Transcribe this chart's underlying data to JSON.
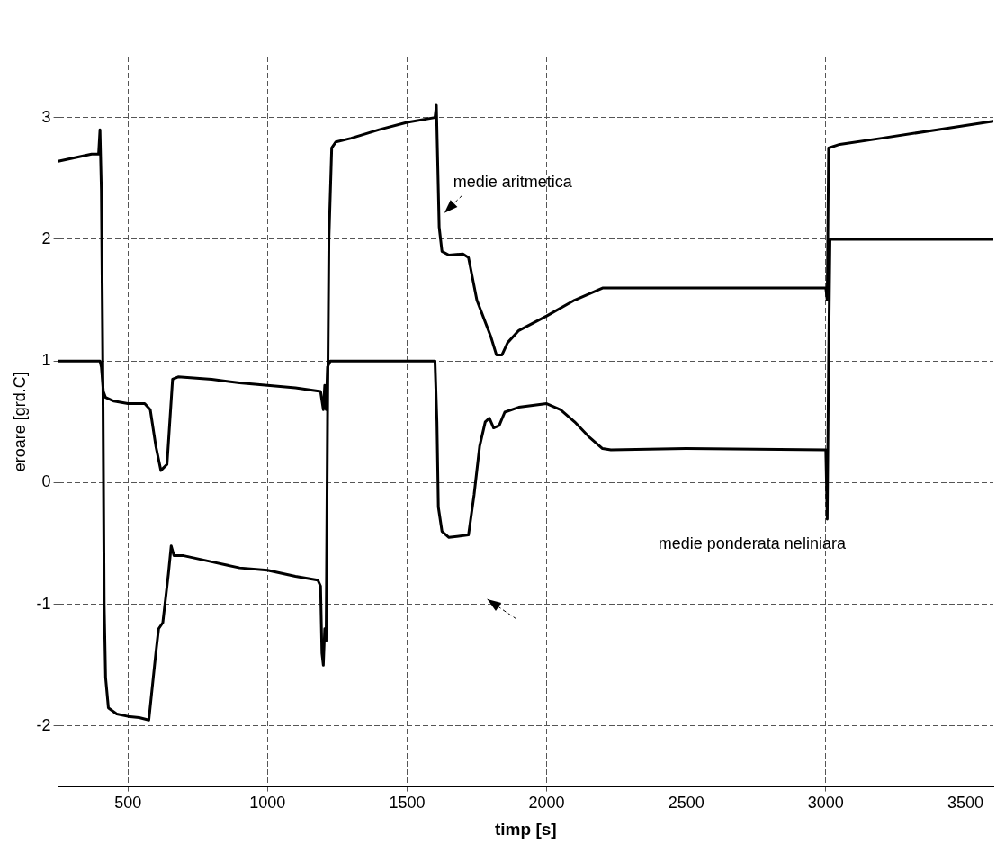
{
  "chart_data": {
    "type": "line",
    "xlabel": "timp [s]",
    "ylabel": "eroare [grd.C]",
    "xlim": [
      250,
      3600
    ],
    "xticks": [
      500,
      1000,
      1500,
      2000,
      2500,
      3000,
      3500
    ],
    "ylim": [
      -2.5,
      3.5
    ],
    "yticks": [
      -2,
      -1,
      0,
      1,
      2,
      3
    ],
    "grid": true,
    "legend": false,
    "marker": "none",
    "line_style": "solid",
    "series": [
      {
        "name": "medie aritmetica",
        "color": "#000000",
        "x": [
          250,
          370,
          395,
          400,
          405,
          410,
          415,
          420,
          430,
          460,
          500,
          540,
          575,
          600,
          610,
          625,
          645,
          655,
          665,
          700,
          800,
          900,
          1000,
          1100,
          1180,
          1190,
          1195,
          1200,
          1205,
          1210,
          1215,
          1220,
          1230,
          1245,
          1300,
          1400,
          1500,
          1600,
          1605,
          1615,
          1625,
          1650,
          1700,
          1720,
          1750,
          1800,
          1820,
          1840,
          1860,
          1900,
          2000,
          2100,
          2200,
          2500,
          3000,
          3005,
          3010,
          3050,
          3200,
          3400,
          3600
        ],
        "values": [
          2.64,
          2.7,
          2.7,
          2.9,
          2.4,
          1.0,
          -1.0,
          -1.6,
          -1.85,
          -1.9,
          -1.92,
          -1.93,
          -1.95,
          -1.4,
          -1.2,
          -1.15,
          -0.75,
          -0.52,
          -0.6,
          -0.6,
          -0.65,
          -0.7,
          -0.72,
          -0.77,
          -0.8,
          -0.85,
          -1.4,
          -1.5,
          -1.2,
          -1.3,
          0.5,
          2.0,
          2.75,
          2.8,
          2.83,
          2.9,
          2.96,
          3.0,
          3.1,
          2.1,
          1.9,
          1.87,
          1.88,
          1.85,
          1.5,
          1.2,
          1.05,
          1.05,
          1.15,
          1.25,
          1.37,
          1.5,
          1.6,
          1.6,
          1.6,
          1.5,
          2.75,
          2.78,
          2.83,
          2.9,
          2.97
        ]
      },
      {
        "name": "medie ponderata neliniara",
        "color": "#000000",
        "x": [
          250,
          400,
          405,
          412,
          420,
          450,
          500,
          560,
          580,
          600,
          618,
          640,
          660,
          680,
          800,
          900,
          1000,
          1100,
          1190,
          1200,
          1205,
          1210,
          1215,
          1225,
          1600,
          1607,
          1612,
          1625,
          1650,
          1720,
          1740,
          1760,
          1780,
          1795,
          1810,
          1830,
          1850,
          1900,
          2000,
          2050,
          2100,
          2150,
          2200,
          2230,
          2500,
          3000,
          3005,
          3010,
          3015,
          3600
        ],
        "values": [
          1,
          1,
          0.95,
          0.75,
          0.7,
          0.67,
          0.65,
          0.65,
          0.6,
          0.3,
          0.1,
          0.15,
          0.85,
          0.87,
          0.85,
          0.82,
          0.8,
          0.78,
          0.75,
          0.6,
          0.8,
          0.6,
          0.95,
          1.0,
          1.0,
          0.5,
          -0.2,
          -0.4,
          -0.45,
          -0.43,
          -0.1,
          0.3,
          0.5,
          0.53,
          0.45,
          0.47,
          0.58,
          0.62,
          0.65,
          0.6,
          0.5,
          0.38,
          0.28,
          0.27,
          0.28,
          0.27,
          -0.3,
          1.0,
          2.0,
          2.0
        ]
      }
    ]
  }
}
